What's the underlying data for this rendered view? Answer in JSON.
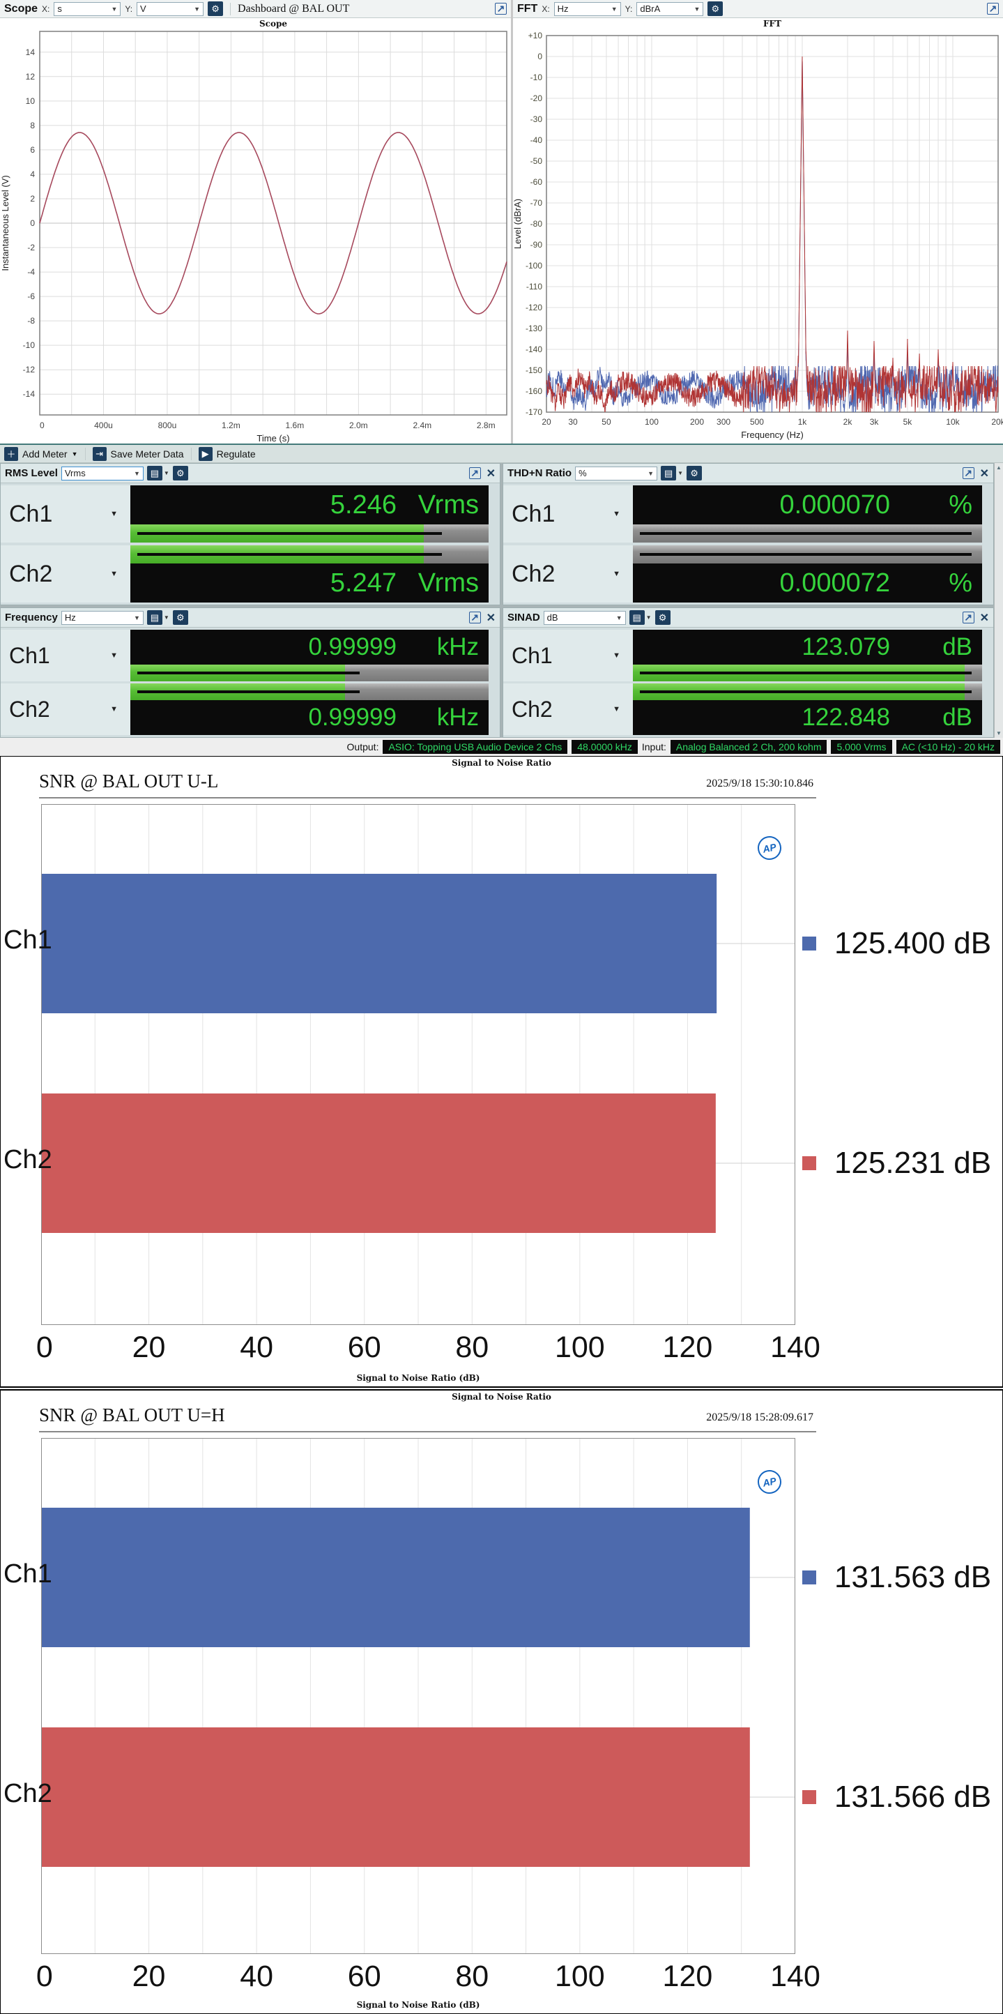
{
  "scope_panel": {
    "title": "Scope",
    "x_label": "X:",
    "x_unit": "s",
    "y_label": "Y:",
    "y_unit": "V",
    "doc_title": "Dashboard @ BAL OUT"
  },
  "fft_panel": {
    "title": "FFT",
    "x_label": "X:",
    "x_unit": "Hz",
    "y_label": "Y:",
    "y_unit": "dBrA"
  },
  "meter_toolbar": {
    "add_meter": "Add Meter",
    "save_meter_data": "Save Meter Data",
    "regulate": "Regulate"
  },
  "meters": [
    {
      "title": "RMS Level",
      "unit_selector": "Vrms",
      "channels": [
        {
          "label": "Ch1",
          "value": "5.246",
          "unit": "Vrms",
          "bar_fill": 82,
          "bar_marker": 87,
          "bar_style": "green"
        },
        {
          "label": "Ch2",
          "value": "5.247",
          "unit": "Vrms",
          "bar_fill": 82,
          "bar_marker": 87,
          "bar_style": "green"
        }
      ]
    },
    {
      "title": "THD+N Ratio",
      "unit_selector": "%",
      "channels": [
        {
          "label": "Ch1",
          "value": "0.000070",
          "unit": "%",
          "bar_fill": 0,
          "bar_marker": 97,
          "bar_style": "gray"
        },
        {
          "label": "Ch2",
          "value": "0.000072",
          "unit": "%",
          "bar_fill": 0,
          "bar_marker": 97,
          "bar_style": "gray"
        }
      ]
    },
    {
      "title": "Frequency",
      "unit_selector": "Hz",
      "channels": [
        {
          "label": "Ch1",
          "value": "0.99999",
          "unit": "kHz",
          "bar_fill": 60,
          "bar_marker": 64,
          "bar_style": "green"
        },
        {
          "label": "Ch2",
          "value": "0.99999",
          "unit": "kHz",
          "bar_fill": 60,
          "bar_marker": 64,
          "bar_style": "green"
        }
      ]
    },
    {
      "title": "SINAD",
      "unit_selector": "dB",
      "channels": [
        {
          "label": "Ch1",
          "value": "123.079",
          "unit": "dB",
          "bar_fill": 95,
          "bar_marker": 97,
          "bar_style": "green"
        },
        {
          "label": "Ch2",
          "value": "122.848",
          "unit": "dB",
          "bar_fill": 95,
          "bar_marker": 97,
          "bar_style": "green"
        }
      ]
    }
  ],
  "status_bar": {
    "output_label": "Output:",
    "output_badges": [
      "ASIO: Topping USB Audio Device 2 Chs",
      "48.0000 kHz"
    ],
    "input_label": "Input:",
    "input_badges": [
      "Analog Balanced 2 Ch, 200 kohm",
      "5.000 Vrms",
      "AC (<10 Hz) - 20 kHz"
    ]
  },
  "charts": [
    {
      "small_title": "Signal to Noise Ratio",
      "header": "SNR @ BAL OUT U-L",
      "timestamp": "2025/9/18 15:30:10.846",
      "x_label": "Signal to Noise Ratio (dB)",
      "rows": [
        {
          "label": "Ch1",
          "value_text": "125.400 dB"
        },
        {
          "label": "Ch2",
          "value_text": "125.231 dB"
        }
      ]
    },
    {
      "small_title": "Signal to Noise Ratio",
      "header": "SNR @ BAL OUT U=H",
      "timestamp": "2025/9/18 15:28:09.617",
      "x_label": "Signal to Noise Ratio (dB)",
      "rows": [
        {
          "label": "Ch1",
          "value_text": "131.563 dB"
        },
        {
          "label": "Ch2",
          "value_text": "131.566 dB"
        }
      ]
    }
  ],
  "chart_data": [
    {
      "id": "scope",
      "type": "line",
      "title": "Scope",
      "xlabel": "Time (s)",
      "ylabel": "Instantaneous Level (V)",
      "xlim": [
        0,
        0.00293
      ],
      "ylim": [
        -15.7,
        15.7
      ],
      "y_tick_step": 2,
      "x_grid_step": 0.0002,
      "x_ticks": [
        {
          "v": 0,
          "label": "0"
        },
        {
          "v": 0.0004,
          "label": "400u"
        },
        {
          "v": 0.0008,
          "label": "800u"
        },
        {
          "v": 0.0012,
          "label": "1.2m"
        },
        {
          "v": 0.0016,
          "label": "1.6m"
        },
        {
          "v": 0.002,
          "label": "2.0m"
        },
        {
          "v": 0.0024,
          "label": "2.4m"
        },
        {
          "v": 0.0028,
          "label": "2.8m"
        }
      ],
      "series": [
        {
          "name": "Ch1",
          "waveform": "sine",
          "frequency_hz": 1000,
          "amplitude_v": 7.42,
          "phase_deg": 0,
          "color": "#a6485c"
        }
      ]
    },
    {
      "id": "fft",
      "type": "line",
      "title": "FFT",
      "xscale": "log",
      "xlabel": "Frequency (Hz)",
      "ylabel": "Level (dBrA)",
      "xlim": [
        20,
        20000
      ],
      "ylim": [
        -170,
        10
      ],
      "y_tick_step": 10,
      "x_ticks": [
        {
          "v": 20,
          "label": "20"
        },
        {
          "v": 30,
          "label": "30"
        },
        {
          "v": 50,
          "label": "50"
        },
        {
          "v": 100,
          "label": "100"
        },
        {
          "v": 200,
          "label": "200"
        },
        {
          "v": 300,
          "label": "300"
        },
        {
          "v": 500,
          "label": "500"
        },
        {
          "v": 1000,
          "label": "1k"
        },
        {
          "v": 2000,
          "label": "2k"
        },
        {
          "v": 3000,
          "label": "3k"
        },
        {
          "v": 5000,
          "label": "5k"
        },
        {
          "v": 10000,
          "label": "10k"
        },
        {
          "v": 20000,
          "label": "20k"
        }
      ],
      "series": [
        {
          "name": "Ch2",
          "color": "#5068b0",
          "noise_floor_db": -159,
          "fundamental": {
            "freq": 1000,
            "level_db": -0.3
          },
          "spikes": [
            [
              50,
              -154
            ],
            [
              940,
              -147
            ],
            [
              1060,
              -145
            ],
            [
              2000,
              -136
            ],
            [
              3000,
              -141
            ],
            [
              4000,
              -148
            ],
            [
              5000,
              -140
            ],
            [
              6000,
              -147
            ],
            [
              8000,
              -145
            ],
            [
              10000,
              -150
            ],
            [
              13000,
              -152
            ],
            [
              16000,
              -153
            ]
          ]
        },
        {
          "name": "Ch1",
          "color": "#b03434",
          "noise_floor_db": -159,
          "fundamental": {
            "freq": 1000,
            "level_db": 0
          },
          "spikes": [
            [
              60,
              -152
            ],
            [
              940,
              -143
            ],
            [
              1060,
              -141
            ],
            [
              1500,
              -150
            ],
            [
              2000,
              -131
            ],
            [
              3000,
              -136
            ],
            [
              4000,
              -144
            ],
            [
              5000,
              -135
            ],
            [
              6000,
              -142
            ],
            [
              7000,
              -149
            ],
            [
              8000,
              -140
            ],
            [
              9000,
              -148
            ],
            [
              10000,
              -146
            ],
            [
              12000,
              -150
            ],
            [
              14000,
              -149
            ],
            [
              16000,
              -151
            ],
            [
              18000,
              -152
            ]
          ]
        }
      ]
    },
    {
      "id": "snr_ul",
      "type": "bar",
      "orientation": "horizontal",
      "title": "Signal to Noise Ratio",
      "xlabel": "Signal to Noise Ratio (dB)",
      "categories": [
        "Ch1",
        "Ch2"
      ],
      "values": [
        125.4,
        125.231
      ],
      "unit": "dB",
      "colors": [
        "#4d6aad",
        "#cd5a5a"
      ],
      "xlim": [
        0,
        140
      ],
      "x_grid_step": 10,
      "x_label_step": 20
    },
    {
      "id": "snr_uh",
      "type": "bar",
      "orientation": "horizontal",
      "title": "Signal to Noise Ratio",
      "xlabel": "Signal to Noise Ratio (dB)",
      "categories": [
        "Ch1",
        "Ch2"
      ],
      "values": [
        131.563,
        131.566
      ],
      "unit": "dB",
      "colors": [
        "#4d6aad",
        "#cd5a5a"
      ],
      "xlim": [
        0,
        140
      ],
      "x_grid_step": 10,
      "x_label_step": 20
    }
  ]
}
